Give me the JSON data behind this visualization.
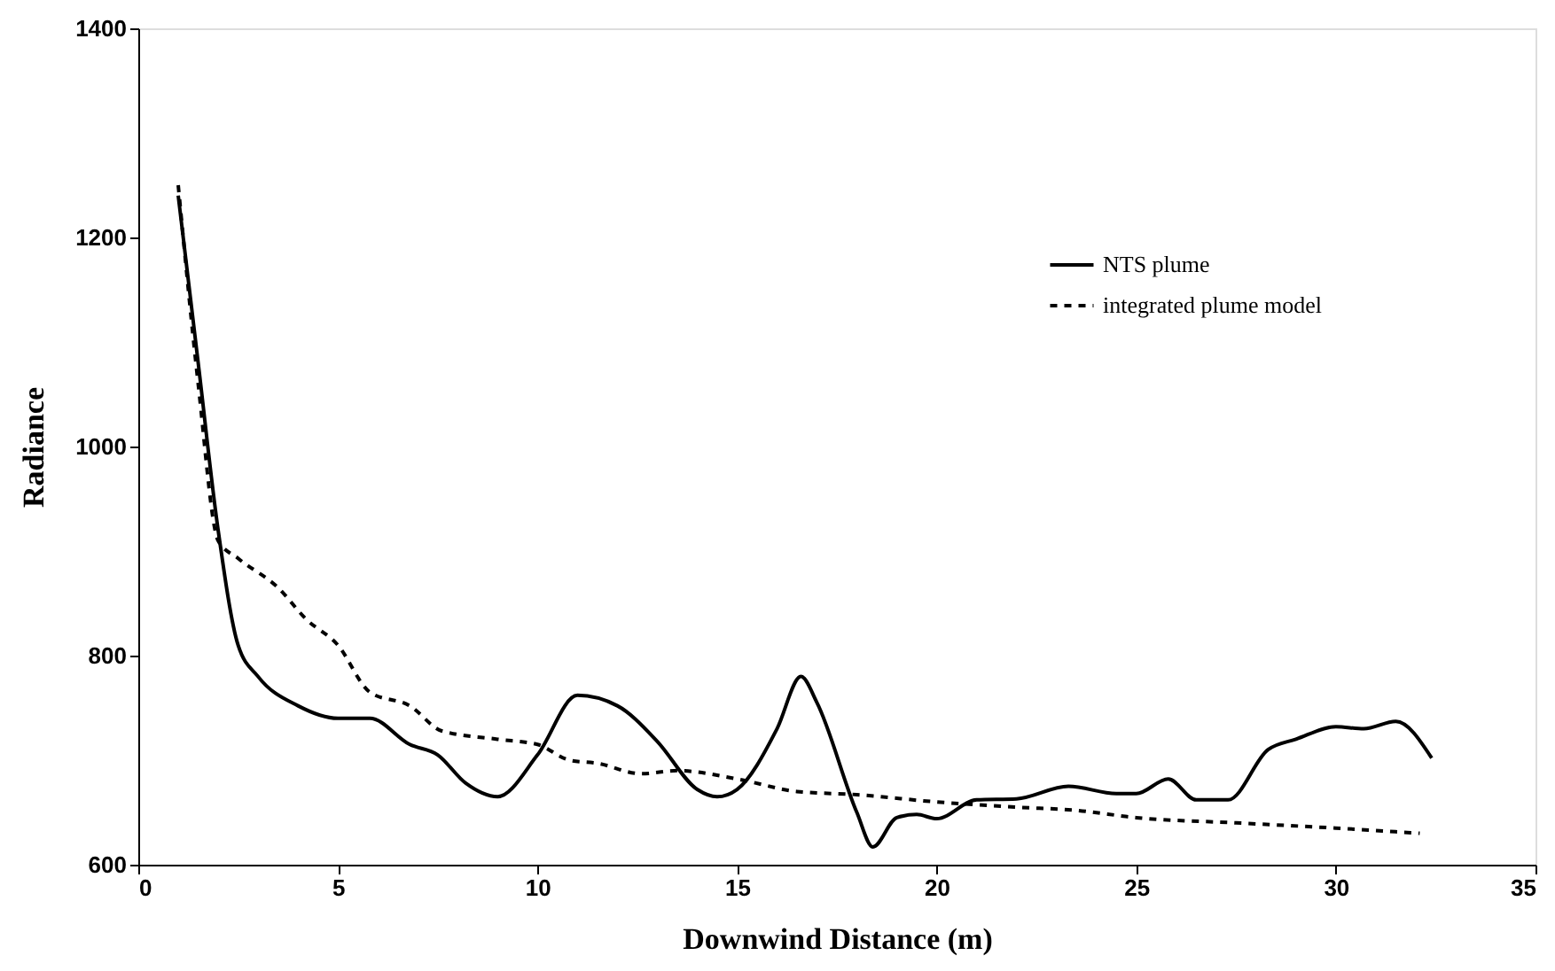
{
  "chart_data": {
    "type": "line",
    "xlabel": "Downwind Distance (m)",
    "ylabel": "Radiance",
    "xlim": [
      0,
      35
    ],
    "xticks": [
      0,
      5,
      10,
      15,
      20,
      25,
      30,
      35
    ],
    "ylim": [
      600,
      1400
    ],
    "yticks": [
      600,
      800,
      1000,
      1200,
      1400
    ],
    "grid": false,
    "legend": "top right",
    "series": [
      {
        "name": "NTS plume",
        "color": "#000000",
        "line_style": "solid",
        "x": [
          1,
          1.5,
          2,
          2.5,
          3,
          4,
          5,
          5.8,
          6.8,
          7.5,
          8.2,
          9,
          10,
          11,
          12,
          13,
          14,
          14.5,
          15,
          16,
          16.6,
          17,
          18,
          18.4,
          19,
          19.5,
          20,
          21,
          22,
          23.3,
          24.5,
          25,
          25.8,
          26.5,
          27.3,
          28.3,
          29,
          30,
          30.7,
          31.5,
          32.4
        ],
        "values": [
          1240,
          1080,
          920,
          810,
          780,
          752,
          740,
          740,
          715,
          705,
          678,
          665,
          705,
          762,
          752,
          718,
          672,
          665,
          672,
          730,
          780,
          755,
          650,
          617,
          645,
          648,
          644,
          662,
          663,
          675,
          668,
          668,
          682,
          662,
          662,
          710,
          720,
          732,
          730,
          737,
          702
        ]
      },
      {
        "name": "integrated plume model",
        "color": "#000000",
        "line_style": "dashed",
        "x": [
          1,
          1.5,
          2,
          2.5,
          3.5,
          4.2,
          5,
          5.8,
          6.8,
          7.6,
          9,
          10,
          10.8,
          11.5,
          12.6,
          13.5,
          15,
          16.5,
          18,
          20,
          22,
          23.5,
          25,
          27.5,
          30,
          32.1
        ],
        "values": [
          1250,
          1060,
          910,
          893,
          865,
          835,
          810,
          765,
          752,
          728,
          720,
          715,
          700,
          697,
          687,
          690,
          682,
          670,
          667,
          660,
          655,
          652,
          645,
          640,
          635,
          630
        ]
      }
    ]
  }
}
